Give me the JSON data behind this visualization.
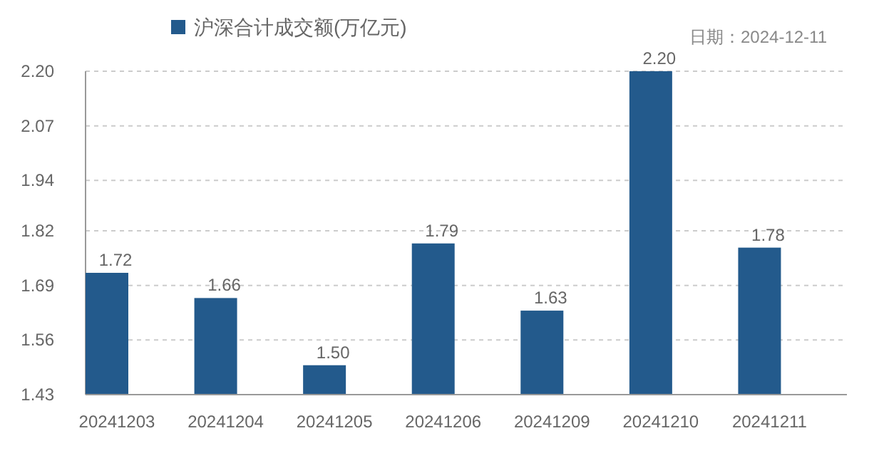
{
  "chart_data": {
    "type": "bar",
    "categories": [
      "20241203",
      "20241204",
      "20241205",
      "20241206",
      "20241209",
      "20241210",
      "20241211"
    ],
    "series": [
      {
        "name": "沪深合计成交额(万亿元)",
        "color": "#235a8c",
        "values": [
          1.72,
          1.66,
          1.5,
          1.79,
          1.63,
          2.2,
          1.78
        ],
        "value_labels": [
          "1.72",
          "1.66",
          "1.50",
          "1.79",
          "1.63",
          "2.20",
          "1.78"
        ]
      }
    ],
    "ylim": [
      1.43,
      2.2
    ],
    "yticks": [
      1.43,
      1.56,
      1.69,
      1.82,
      1.94,
      2.07,
      {
        "value": 2.2,
        "label": "2.20"
      }
    ],
    "grid": "y",
    "legend": "top",
    "annotations": [
      "日期：2024-12-11"
    ]
  }
}
